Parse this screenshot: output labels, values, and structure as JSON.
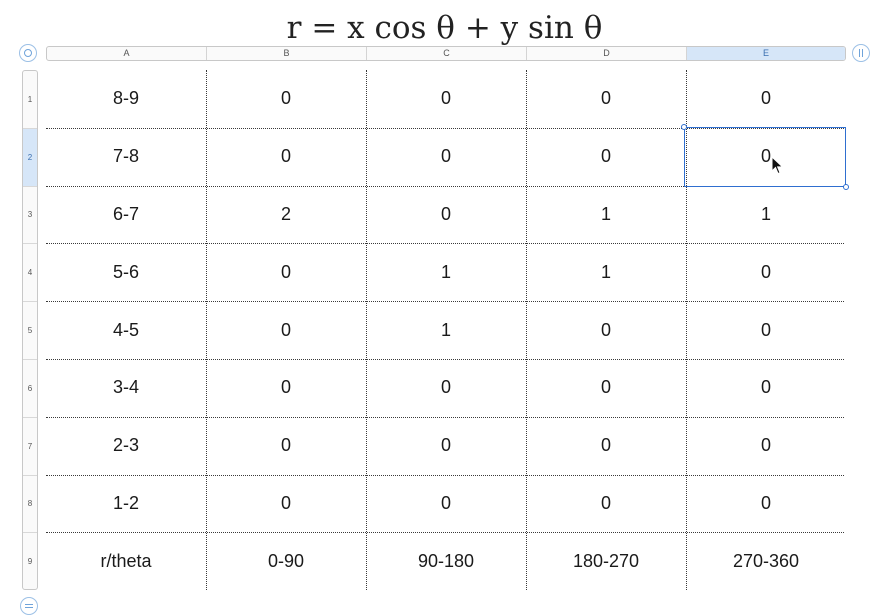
{
  "formula": {
    "lhs": "r",
    "eq": "=",
    "term1_var": "x",
    "term1_fn": "cos",
    "term1_arg": "θ",
    "plus": "+",
    "term2_var": "y",
    "term2_fn": "sin",
    "term2_arg": "θ"
  },
  "columns": [
    "A",
    "B",
    "C",
    "D",
    "E"
  ],
  "selected_column": "E",
  "rows": [
    "1",
    "2",
    "3",
    "4",
    "5",
    "6",
    "7",
    "8",
    "9"
  ],
  "selected_row": "2",
  "table": [
    [
      "8-9",
      "0",
      "0",
      "0",
      "0"
    ],
    [
      "7-8",
      "0",
      "0",
      "0",
      "0"
    ],
    [
      "6-7",
      "2",
      "0",
      "1",
      "1"
    ],
    [
      "5-6",
      "0",
      "1",
      "1",
      "0"
    ],
    [
      "4-5",
      "0",
      "1",
      "0",
      "0"
    ],
    [
      "3-4",
      "0",
      "0",
      "0",
      "0"
    ],
    [
      "2-3",
      "0",
      "0",
      "0",
      "0"
    ],
    [
      "1-2",
      "0",
      "0",
      "0",
      "0"
    ],
    [
      "r/theta",
      "0-90",
      "90-180",
      "180-270",
      "270-360"
    ]
  ],
  "colors": {
    "selection": "#2f6fd0",
    "header_selected_bg": "#d6e6f8",
    "gridline": "#3a3a3a"
  },
  "icons": {
    "select_all": "select-all-circle-icon",
    "freeze": "freeze-columns-icon",
    "add_row": "add-row-icon",
    "cursor": "mouse-pointer-icon"
  }
}
